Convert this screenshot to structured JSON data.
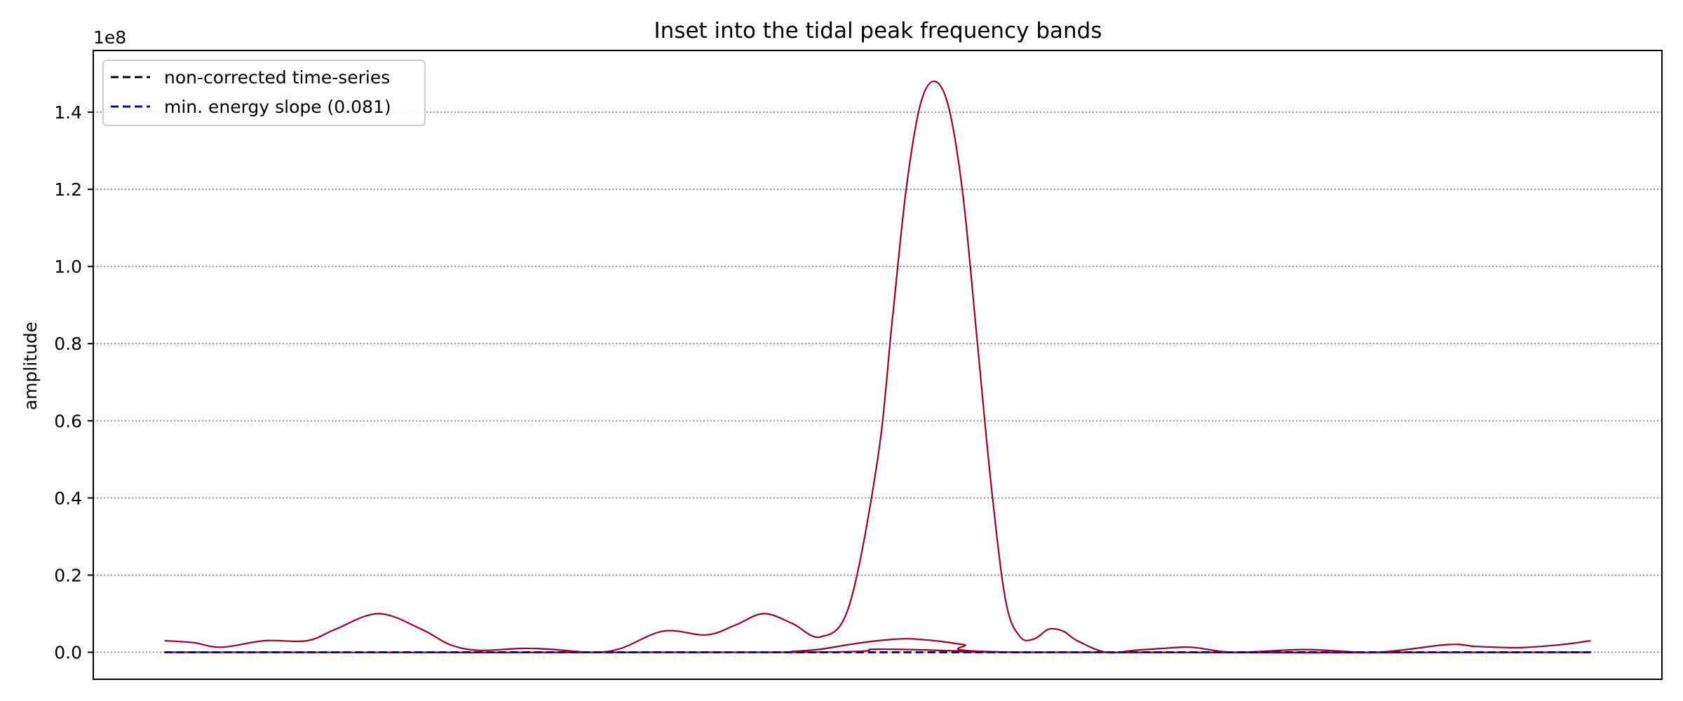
{
  "chart_data": {
    "type": "line",
    "title": "Inset into the tidal peak frequency bands",
    "xlabel": "",
    "ylabel": "amplitude",
    "y_offset_label": "1e8",
    "ylim": [
      -0.07,
      1.56
    ],
    "xlim": [
      -0.05,
      1.05
    ],
    "x_ticks_shown": false,
    "grid": {
      "axis": "y",
      "style": "dotted",
      "color": "#808080"
    },
    "yticks": [
      0.0,
      0.2,
      0.4,
      0.6,
      0.8,
      1.0,
      1.2,
      1.4
    ],
    "ytick_labels": [
      "0.0",
      "0.2",
      "0.4",
      "0.6",
      "0.8",
      "1.0",
      "1.2",
      "1.4"
    ],
    "legend": {
      "position": "upper-left",
      "entries": [
        {
          "label": "non-corrected time-series",
          "color": "#000000",
          "dash": "dashed"
        },
        {
          "label": "min. energy slope (0.081)",
          "color": "#0000cc",
          "dash": "dashed"
        }
      ]
    },
    "series": [
      {
        "color": "#990022",
        "dash": "solid",
        "x": [
          0.0,
          0.02,
          0.04,
          0.07,
          0.1,
          0.12,
          0.15,
          0.18,
          0.2,
          0.22,
          0.25,
          0.27,
          0.3,
          0.32,
          0.35,
          0.38,
          0.4,
          0.42,
          0.44,
          0.46,
          0.48,
          0.5,
          0.51,
          0.52,
          0.53,
          0.54,
          0.55,
          0.56,
          0.57,
          0.58,
          0.59,
          0.6,
          0.61,
          0.62,
          0.63,
          0.64,
          0.66,
          0.68,
          0.7,
          0.72,
          0.75,
          0.8,
          0.85,
          0.9,
          0.92,
          0.95,
          0.98,
          1.0
        ],
        "y": [
          0.03,
          0.025,
          0.013,
          0.03,
          0.03,
          0.06,
          0.1,
          0.06,
          0.02,
          0.005,
          0.01,
          0.008,
          0.0,
          0.01,
          0.055,
          0.045,
          0.07,
          0.1,
          0.075,
          0.04,
          0.12,
          0.5,
          0.85,
          1.2,
          1.42,
          1.48,
          1.41,
          1.18,
          0.8,
          0.42,
          0.13,
          0.04,
          0.035,
          0.06,
          0.055,
          0.03,
          0.0,
          0.005,
          0.01,
          0.013,
          0.0,
          0.007,
          0.0,
          0.02,
          0.015,
          0.012,
          0.02,
          0.03
        ]
      },
      {
        "color": "#990022",
        "dash": "solid",
        "x": [
          0.0,
          0.42,
          0.44,
          0.46,
          0.48,
          0.5,
          0.52,
          0.54,
          0.56,
          0.6,
          1.0
        ],
        "y": [
          0.0,
          0.0,
          0.002,
          0.008,
          0.02,
          0.03,
          0.035,
          0.03,
          0.02,
          0.0,
          0.0
        ]
      },
      {
        "color": "#990022",
        "dash": "solid",
        "x": [
          0.0,
          0.44,
          0.5,
          0.56,
          0.6,
          1.0
        ],
        "y": [
          0.0,
          0.0,
          0.008,
          0.003,
          0.0,
          0.0
        ]
      },
      {
        "name": "non-corrected time-series",
        "color": "#000000",
        "dash": "dashed",
        "x": [
          0.0,
          1.0
        ],
        "y": [
          0.0,
          0.0
        ]
      },
      {
        "name": "min. energy slope (0.081)",
        "color": "#0000cc",
        "dash": "dashed",
        "x": [
          0.0,
          1.0
        ],
        "y": [
          0.0,
          0.0
        ]
      }
    ]
  }
}
